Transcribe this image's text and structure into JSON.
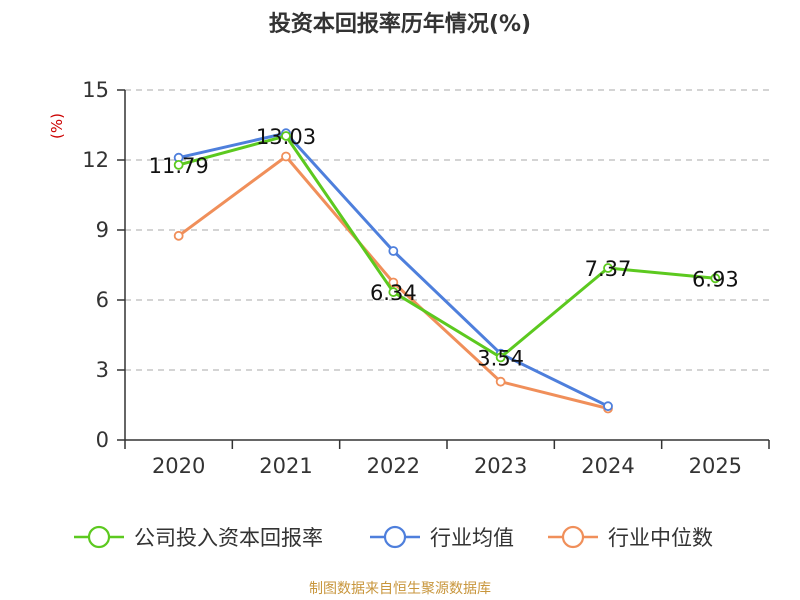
{
  "chart_data": {
    "type": "line",
    "title": "投资本回报率历年情况(%)",
    "ylabel": "(%)",
    "xlabel": "",
    "categories": [
      "2020",
      "2021",
      "2022",
      "2023",
      "2024",
      "2025"
    ],
    "ylim": [
      0,
      15
    ],
    "yticks": [
      0,
      3,
      6,
      9,
      12,
      15
    ],
    "grid": true,
    "legend_position": "bottom",
    "series": [
      {
        "name": "公司投入资本回报率",
        "color": "#5cc91f",
        "values": [
          11.79,
          13.03,
          6.34,
          3.54,
          7.37,
          6.93
        ],
        "labels": [
          "11.79",
          "13.03",
          "6.34",
          "3.54",
          "7.37",
          "6.93"
        ]
      },
      {
        "name": "行业均值",
        "color": "#4e7fdc",
        "values": [
          12.1,
          13.15,
          8.1,
          3.7,
          1.45,
          null
        ]
      },
      {
        "name": "行业中位数",
        "color": "#f08f5a",
        "values": [
          8.75,
          12.15,
          6.75,
          2.5,
          1.35,
          null
        ]
      }
    ]
  },
  "source_text": "制图数据来自恒生聚源数据库"
}
